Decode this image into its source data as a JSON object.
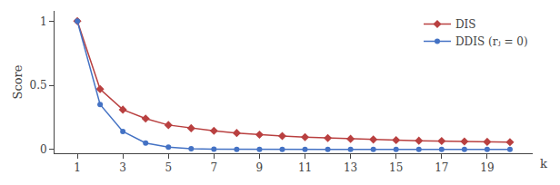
{
  "chart_data": {
    "type": "line",
    "title": "",
    "xlabel": "k",
    "ylabel": "Score",
    "x": [
      1,
      2,
      3,
      4,
      5,
      6,
      7,
      8,
      9,
      10,
      11,
      12,
      13,
      14,
      15,
      16,
      17,
      18,
      19,
      20
    ],
    "series": [
      {
        "name": "DIS",
        "color": "#b94040",
        "marker": "diamond",
        "values": [
          1.0,
          0.47,
          0.31,
          0.24,
          0.19,
          0.165,
          0.145,
          0.128,
          0.115,
          0.104,
          0.095,
          0.088,
          0.082,
          0.077,
          0.072,
          0.068,
          0.065,
          0.062,
          0.059,
          0.057
        ]
      },
      {
        "name": "DDIS (rⱼ = 0)",
        "color": "#4472c4",
        "marker": "circle",
        "values": [
          1.0,
          0.35,
          0.14,
          0.05,
          0.018,
          0.006,
          0.002,
          0.0007,
          0.0003,
          0.0001,
          5e-05,
          2e-05,
          8e-06,
          3e-06,
          1e-06,
          4e-07,
          1.5e-07,
          6e-08,
          2e-08,
          8e-09
        ]
      }
    ],
    "xlim": [
      0,
      21
    ],
    "xticks": [
      1,
      3,
      5,
      7,
      9,
      11,
      13,
      15,
      17,
      19
    ],
    "ylim": [
      -0.03,
      1.08
    ],
    "yticks": [
      0,
      0.5,
      1
    ],
    "grid": false,
    "legend": "upper right"
  }
}
